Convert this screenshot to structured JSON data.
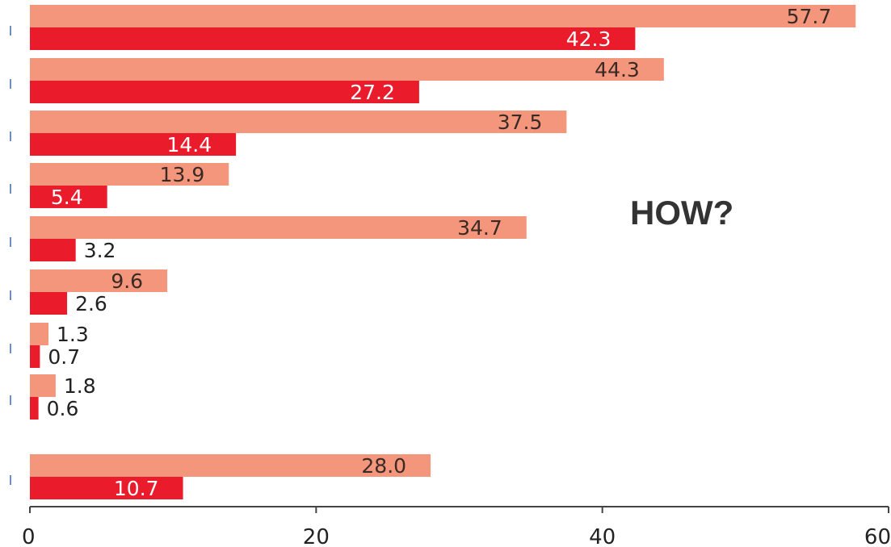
{
  "chart_data": {
    "type": "bar",
    "orientation": "horizontal",
    "categories": [
      "",
      "",
      "",
      "",
      "",
      "",
      "",
      "",
      ""
    ],
    "series": [
      {
        "values": [
          57.7,
          44.3,
          37.5,
          13.9,
          34.7,
          9.6,
          1.3,
          1.8,
          28.0
        ],
        "labels": [
          "57.7",
          "44.3",
          "37.5",
          "13.9",
          "34.7",
          "9.6",
          "1.3",
          "1.8",
          "28.0"
        ]
      },
      {
        "values": [
          42.3,
          27.2,
          14.4,
          5.4,
          3.2,
          2.6,
          0.7,
          0.6,
          10.7
        ],
        "labels": [
          "42.3",
          "27.2",
          "14.4",
          "5.4",
          "3.2",
          "2.6",
          "0.7",
          "0.6",
          "10.7"
        ]
      }
    ],
    "xlim": [
      0,
      60
    ],
    "xticks": [
      0,
      20,
      40,
      60
    ],
    "xtick_labels": [
      "0",
      "20",
      "40",
      "60"
    ],
    "grid": false,
    "annotation": "HOW?"
  },
  "colors": {
    "series_light": "#f4967c",
    "series_dark": "#ea1c2c",
    "label_on_light": "#3a2a25",
    "label_on_dark": "#ffffff",
    "label_outside": "#222222",
    "axis": "#444444",
    "category_tick": "#6a8fc0"
  }
}
